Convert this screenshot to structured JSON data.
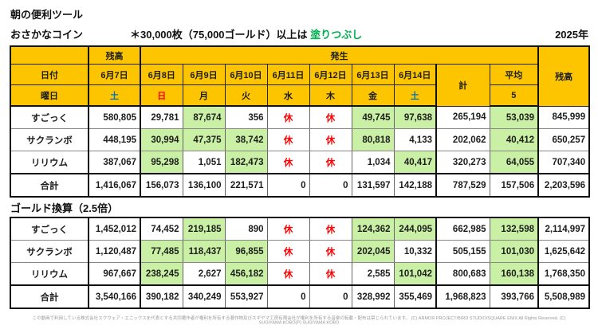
{
  "page": {
    "title": "朝の便利ツール",
    "year": "2025年",
    "footer": "この動画で利用している株式会社スクウェア・エニックスを代表とする共同著作者が権利を所有する著作物及びスギヤマ工房有限会社が権利を所有する音楽の転載・配布は禁じられています。 (C) ARMOR PROJECT/BIRD STUDIO/SQUARE ENIX All Rights Reserved. (C) SUGIYAMA KOBO(P) SUGIYAMA KOBO"
  },
  "colors": {
    "header_fill": "#FDC500",
    "highlight_fill": "#C9F0A4",
    "note_green": "#00B050",
    "saturday_blue": "#0070C0",
    "sunday_red": "#FF0000"
  },
  "coin_table": {
    "title": "おさかなコイン",
    "note": {
      "prefix": "＊30,000枚（75,000ゴールド）以上は ",
      "highlight": "塗りつぶし"
    },
    "header": {
      "balance_left": "残高",
      "occurrence": "発生",
      "date_label": "日付",
      "weekday_label": "曜日",
      "dates": [
        "6月7日",
        "6月8日",
        "6月9日",
        "6月10日",
        "6月11日",
        "6月12日",
        "6月13日",
        "6月14日"
      ],
      "weekdays": [
        {
          "t": "土",
          "c": "sat"
        },
        {
          "t": "日",
          "c": "sun"
        },
        {
          "t": "月",
          "c": ""
        },
        {
          "t": "火",
          "c": ""
        },
        {
          "t": "水",
          "c": ""
        },
        {
          "t": "木",
          "c": ""
        },
        {
          "t": "金",
          "c": ""
        },
        {
          "t": "土",
          "c": "sat"
        }
      ],
      "total": "計",
      "average": "平均",
      "average_sub": "5",
      "balance_right": "残高"
    },
    "rows": [
      {
        "label": "すごっく",
        "balance_start": "580,805",
        "days": [
          {
            "v": "29,781"
          },
          {
            "v": "87,674",
            "fill": true
          },
          {
            "v": "356"
          },
          {
            "v": "休",
            "rest": true
          },
          {
            "v": "休",
            "rest": true
          },
          {
            "v": "49,745",
            "fill": true
          },
          {
            "v": "97,638",
            "fill": true
          }
        ],
        "total": "265,194",
        "average": {
          "v": "53,039",
          "fill": true
        },
        "balance_end": "845,999"
      },
      {
        "label": "サクランボ",
        "balance_start": "448,195",
        "days": [
          {
            "v": "30,994",
            "fill": true
          },
          {
            "v": "47,375",
            "fill": true
          },
          {
            "v": "38,742",
            "fill": true
          },
          {
            "v": "休",
            "rest": true
          },
          {
            "v": "休",
            "rest": true
          },
          {
            "v": "80,818",
            "fill": true
          },
          {
            "v": "4,133"
          }
        ],
        "total": "202,062",
        "average": {
          "v": "40,412",
          "fill": true
        },
        "balance_end": "650,257"
      },
      {
        "label": "リリウム",
        "balance_start": "387,067",
        "days": [
          {
            "v": "95,298",
            "fill": true
          },
          {
            "v": "1,051"
          },
          {
            "v": "182,473",
            "fill": true
          },
          {
            "v": "休",
            "rest": true
          },
          {
            "v": "休",
            "rest": true
          },
          {
            "v": "1,034"
          },
          {
            "v": "40,417",
            "fill": true
          }
        ],
        "total": "320,273",
        "average": {
          "v": "64,055",
          "fill": true
        },
        "balance_end": "707,340"
      },
      {
        "label": "合計",
        "is_total": true,
        "balance_start": "1,416,067",
        "days": [
          {
            "v": "156,073"
          },
          {
            "v": "136,100"
          },
          {
            "v": "221,571"
          },
          {
            "v": "0"
          },
          {
            "v": "0"
          },
          {
            "v": "131,597"
          },
          {
            "v": "142,188"
          }
        ],
        "total": "787,529",
        "average": {
          "v": "157,506"
        },
        "balance_end": "2,203,596"
      }
    ]
  },
  "gold_table": {
    "title": "ゴールド換算（2.5倍）",
    "rows": [
      {
        "label": "すごっく",
        "balance_start": "1,452,012",
        "days": [
          {
            "v": "74,452"
          },
          {
            "v": "219,185",
            "fill": true
          },
          {
            "v": "890"
          },
          {
            "v": "休",
            "rest": true
          },
          {
            "v": "休",
            "rest": true
          },
          {
            "v": "124,362",
            "fill": true
          },
          {
            "v": "244,095",
            "fill": true
          }
        ],
        "total": "662,985",
        "average": {
          "v": "132,598",
          "fill": true
        },
        "balance_end": "2,114,997"
      },
      {
        "label": "サクランボ",
        "balance_start": "1,120,487",
        "days": [
          {
            "v": "77,485",
            "fill": true
          },
          {
            "v": "118,437",
            "fill": true
          },
          {
            "v": "96,855",
            "fill": true
          },
          {
            "v": "休",
            "rest": true
          },
          {
            "v": "休",
            "rest": true
          },
          {
            "v": "202,045",
            "fill": true
          },
          {
            "v": "10,332"
          }
        ],
        "total": "505,155",
        "average": {
          "v": "101,030",
          "fill": true
        },
        "balance_end": "1,625,642"
      },
      {
        "label": "リリウム",
        "balance_start": "967,667",
        "days": [
          {
            "v": "238,245",
            "fill": true
          },
          {
            "v": "2,627"
          },
          {
            "v": "456,182",
            "fill": true
          },
          {
            "v": "休",
            "rest": true
          },
          {
            "v": "休",
            "rest": true
          },
          {
            "v": "2,585"
          },
          {
            "v": "101,042",
            "fill": true
          }
        ],
        "total": "800,683",
        "average": {
          "v": "160,138",
          "fill": true
        },
        "balance_end": "1,768,350"
      },
      {
        "label": "合計",
        "is_total": true,
        "balance_start": "3,540,166",
        "days": [
          {
            "v": "390,182"
          },
          {
            "v": "340,249"
          },
          {
            "v": "553,927"
          },
          {
            "v": "0"
          },
          {
            "v": "0"
          },
          {
            "v": "328,992"
          },
          {
            "v": "355,469"
          }
        ],
        "total": "1,968,823",
        "average": {
          "v": "393,766"
        },
        "balance_end": "5,508,989"
      }
    ]
  }
}
